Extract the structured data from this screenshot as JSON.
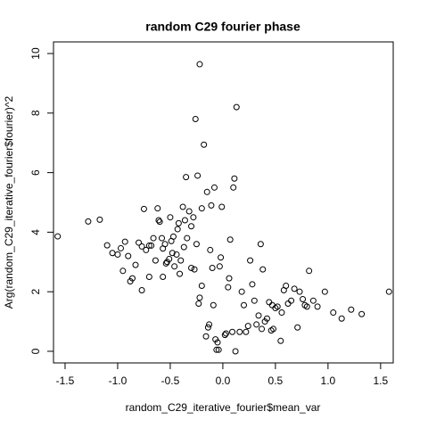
{
  "chart_data": {
    "type": "scatter",
    "title": "random C29 fourier phase",
    "xlabel": "random_C29_iterative_fourier$mean_var",
    "ylabel": "Arg(random_C29_iterative_fourier$fourier)^2",
    "color": "#000000",
    "xlim": [
      -1.61,
      1.62
    ],
    "ylim": [
      -0.39,
      10.39
    ],
    "xticks": [
      -1.5,
      {
        "value": -1.0,
        "label": "-1.0"
      },
      -0.5,
      {
        "value": 0,
        "label": "0.0"
      },
      0.5,
      {
        "value": 1.0,
        "label": "1.0"
      },
      1.5
    ],
    "yticks": [
      0,
      2,
      4,
      6,
      8,
      10
    ],
    "x": [
      -1.57,
      -1.28,
      -1.17,
      -1.1,
      -1.05,
      -1.0,
      -0.97,
      -0.93,
      -0.95,
      -0.9,
      -0.88,
      -0.86,
      -0.83,
      -0.8,
      -0.77,
      -0.75,
      -0.77,
      -0.73,
      -0.7,
      -0.7,
      -0.68,
      -0.66,
      -0.64,
      -0.62,
      -0.61,
      -0.6,
      -0.58,
      -0.57,
      -0.57,
      -0.55,
      -0.54,
      -0.53,
      -0.51,
      -0.5,
      -0.49,
      -0.48,
      -0.47,
      -0.46,
      -0.44,
      -0.43,
      -0.42,
      -0.41,
      -0.4,
      -0.38,
      -0.37,
      -0.36,
      -0.35,
      -0.34,
      -0.32,
      -0.3,
      -0.3,
      -0.28,
      -0.27,
      -0.26,
      -0.25,
      -0.24,
      -0.22,
      -0.23,
      -0.22,
      -0.2,
      -0.2,
      -0.18,
      -0.16,
      -0.15,
      -0.14,
      -0.13,
      -0.12,
      -0.11,
      -0.1,
      -0.09,
      -0.08,
      -0.07,
      -0.06,
      -0.05,
      -0.04,
      -0.03,
      -0.02,
      -0.01,
      0.02,
      0.03,
      0.05,
      0.06,
      0.07,
      0.09,
      0.1,
      0.11,
      0.12,
      0.13,
      0.16,
      0.18,
      0.2,
      0.22,
      0.24,
      0.26,
      0.28,
      0.3,
      0.32,
      0.34,
      0.36,
      0.37,
      0.38,
      0.4,
      0.42,
      0.44,
      0.46,
      0.47,
      0.48,
      0.5,
      0.52,
      0.55,
      0.56,
      0.58,
      0.6,
      0.62,
      0.65,
      0.68,
      0.71,
      0.73,
      0.76,
      0.78,
      0.8,
      0.82,
      0.86,
      0.9,
      0.97,
      1.05,
      1.13,
      1.22,
      1.32,
      1.58
    ],
    "y": [
      3.86,
      4.36,
      4.42,
      3.56,
      3.3,
      3.25,
      3.46,
      3.68,
      2.7,
      3.2,
      2.35,
      2.45,
      2.9,
      3.65,
      3.52,
      4.78,
      2.05,
      3.4,
      3.55,
      2.5,
      3.55,
      3.8,
      3.05,
      4.8,
      4.4,
      4.35,
      3.8,
      3.45,
      2.5,
      3.6,
      2.95,
      3.0,
      3.1,
      4.5,
      3.7,
      3.3,
      3.85,
      2.85,
      3.25,
      4.1,
      4.3,
      2.6,
      3.05,
      4.85,
      3.5,
      4.4,
      5.85,
      3.8,
      4.7,
      4.2,
      2.8,
      4.5,
      2.75,
      7.8,
      3.6,
      5.9,
      9.64,
      1.6,
      1.8,
      2.2,
      4.8,
      6.94,
      0.5,
      5.35,
      0.8,
      0.9,
      3.4,
      4.9,
      2.8,
      1.55,
      5.5,
      0.4,
      0.05,
      0.3,
      0.05,
      2.85,
      3.15,
      4.85,
      0.55,
      0.6,
      2.15,
      2.45,
      3.75,
      0.65,
      5.5,
      5.8,
      0.0,
      8.2,
      0.65,
      2.0,
      1.55,
      0.65,
      0.85,
      3.05,
      2.25,
      1.7,
      0.9,
      1.2,
      3.6,
      0.75,
      2.75,
      1.0,
      1.1,
      1.65,
      0.7,
      1.55,
      0.75,
      1.45,
      1.5,
      0.35,
      1.3,
      2.05,
      2.2,
      1.6,
      1.7,
      2.1,
      0.8,
      2.0,
      1.75,
      1.55,
      1.5,
      2.7,
      1.7,
      1.5,
      2.0,
      1.3,
      1.1,
      1.4,
      1.25,
      2.0
    ]
  }
}
